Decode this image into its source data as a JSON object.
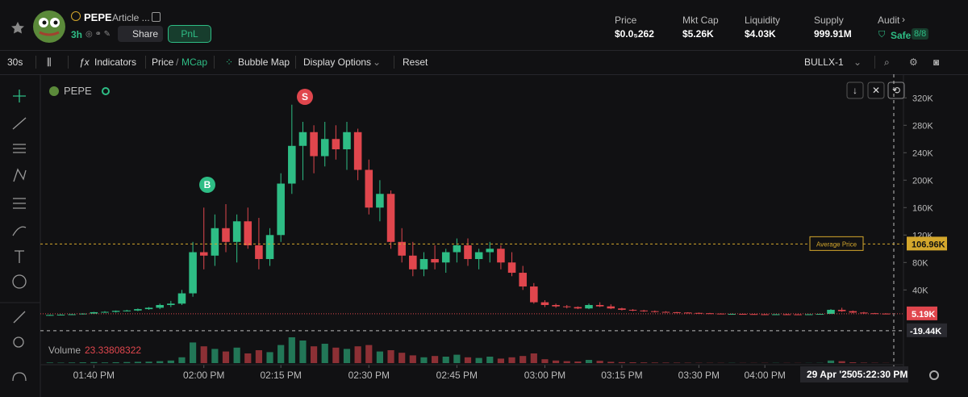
{
  "header": {
    "token": "PEPE",
    "subtitle": "Article ...",
    "age": "3h",
    "share": "Share",
    "pnl": "PnL",
    "stats": [
      {
        "label": "Price",
        "value": "$0.0₅262"
      },
      {
        "label": "Mkt Cap",
        "value": "$5.26K"
      },
      {
        "label": "Liquidity",
        "value": "$4.03K"
      },
      {
        "label": "Supply",
        "value": "999.91M"
      }
    ],
    "audit": {
      "label": "Audit",
      "status": "Safe",
      "score": "8/8"
    }
  },
  "toolbar": {
    "interval": "30s",
    "indicators": "Indicators",
    "price": "Price",
    "mcap": "MCap",
    "bubble": "Bubble Map",
    "display": "Display Options",
    "reset": "Reset",
    "bot": "BULLX-1"
  },
  "chart_data": {
    "type": "candlestick",
    "title": "PEPE",
    "grid": false,
    "categories": [
      null,
      null,
      null,
      null,
      "01:40 PM",
      null,
      null,
      null,
      null,
      null,
      null,
      null,
      null,
      null,
      "02:00 PM",
      null,
      null,
      null,
      null,
      null,
      null,
      "02:15 PM",
      null,
      null,
      null,
      null,
      null,
      null,
      null,
      "02:30 PM",
      null,
      null,
      null,
      null,
      null,
      null,
      null,
      "02:45 PM",
      null,
      null,
      null,
      null,
      null,
      null,
      null,
      "03:00 PM",
      null,
      null,
      null,
      null,
      null,
      null,
      "03:15 PM",
      null,
      null,
      null,
      null,
      null,
      null,
      "03:30 PM",
      null,
      null,
      null,
      null,
      null,
      "04:00 PM",
      null,
      null,
      null,
      null,
      null,
      null,
      null,
      null,
      null,
      null,
      null
    ],
    "open": [
      3,
      3.5,
      4,
      4.5,
      5.5,
      7.5,
      8,
      9.5,
      10,
      12,
      14,
      18,
      20,
      35,
      95,
      90,
      130,
      110,
      140,
      105,
      85,
      120,
      195,
      250,
      270,
      235,
      260,
      245,
      270,
      215,
      160,
      180,
      110,
      90,
      70,
      85,
      80,
      95,
      105,
      85,
      95,
      100,
      80,
      65,
      45,
      22,
      18,
      16,
      15,
      13,
      18,
      16,
      13,
      11,
      10,
      9,
      8,
      7.5,
      7,
      6.5,
      6,
      5.5,
      5,
      5,
      4.8,
      4.5,
      4.3,
      4.5,
      4.4,
      4.2,
      4.5,
      5,
      11,
      9,
      7,
      6,
      5.5
    ],
    "high": [
      4,
      4.5,
      5,
      6,
      8,
      9,
      10,
      11,
      13,
      15,
      20,
      24,
      40,
      110,
      160,
      150,
      165,
      150,
      160,
      145,
      130,
      210,
      310,
      285,
      280,
      285,
      280,
      285,
      275,
      230,
      200,
      185,
      130,
      110,
      95,
      105,
      100,
      115,
      115,
      100,
      110,
      105,
      95,
      75,
      50,
      25,
      20,
      18,
      16,
      20,
      22,
      19,
      14,
      12,
      11,
      10,
      9,
      8,
      7.5,
      7,
      6.5,
      6,
      5.5,
      5.5,
      5,
      5,
      4.8,
      5,
      4.8,
      4.6,
      5.2,
      12,
      14,
      10,
      8,
      6.5,
      6
    ],
    "low": [
      2.5,
      3,
      3.5,
      4,
      5,
      6.5,
      7,
      8.5,
      9,
      11,
      12,
      15,
      18,
      30,
      70,
      75,
      95,
      80,
      100,
      70,
      75,
      110,
      180,
      200,
      210,
      220,
      230,
      215,
      200,
      150,
      140,
      100,
      80,
      60,
      60,
      70,
      65,
      80,
      75,
      70,
      80,
      70,
      60,
      40,
      20,
      15,
      14,
      13,
      12,
      12,
      15,
      12,
      10,
      9,
      8,
      7,
      7,
      6,
      6,
      5.5,
      5,
      5,
      4.5,
      4.5,
      4.2,
      4,
      4,
      4.2,
      4,
      4,
      4.3,
      5,
      8,
      6,
      5,
      5,
      5
    ],
    "close": [
      3.5,
      4,
      4.5,
      5.5,
      7.5,
      8,
      9.5,
      10,
      12,
      14,
      18,
      20,
      35,
      95,
      90,
      130,
      110,
      140,
      105,
      85,
      120,
      195,
      250,
      270,
      235,
      260,
      245,
      270,
      215,
      160,
      180,
      110,
      90,
      70,
      85,
      80,
      95,
      105,
      85,
      95,
      100,
      80,
      65,
      45,
      22,
      18,
      16,
      15,
      13,
      18,
      16,
      13,
      11,
      10,
      9,
      8,
      7.5,
      7,
      6.5,
      6,
      5.5,
      5,
      5,
      4.8,
      4.5,
      4.3,
      4.5,
      4.4,
      4.2,
      4.5,
      5,
      11,
      9,
      7,
      6,
      5.5,
      5.19
    ],
    "volume_label": "Volume",
    "volume": [
      80,
      60,
      90,
      120,
      150,
      100,
      130,
      160,
      200,
      220,
      300,
      400,
      900,
      3200,
      2600,
      2200,
      1800,
      2400,
      1500,
      2000,
      1700,
      2800,
      4000,
      3500,
      2600,
      3000,
      2400,
      2200,
      2600,
      2800,
      1800,
      2000,
      1600,
      1200,
      900,
      1100,
      1000,
      1300,
      900,
      800,
      1000,
      700,
      900,
      1100,
      1500,
      600,
      400,
      300,
      250,
      500,
      350,
      200,
      150,
      120,
      100,
      80,
      70,
      60,
      50,
      40,
      35,
      30,
      30,
      25,
      25,
      30,
      28,
      25,
      22,
      20,
      30,
      400,
      300,
      120,
      60,
      40,
      23.33808322
    ],
    "up_color": "#2ebd85",
    "down_color": "#e0464d",
    "ylim": [
      -22,
      345
    ],
    "yticks": [
      {
        "value": 40,
        "label": "40K"
      },
      {
        "value": 80,
        "label": "80K"
      },
      {
        "value": 120,
        "label": "120K"
      },
      {
        "value": 160,
        "label": "160K"
      },
      {
        "value": 200,
        "label": "200K"
      },
      {
        "value": 240,
        "label": "240K"
      },
      {
        "value": 280,
        "label": "280K"
      },
      {
        "value": 320,
        "label": "320K"
      }
    ],
    "average_price": {
      "label": "Average Price",
      "value": 106.96,
      "value_label": "106.96K",
      "color": "#d4a72c"
    },
    "last_price": {
      "value": 5.19,
      "value_label": "5.19K",
      "color": "#e0464d"
    },
    "crosshair": {
      "value": -19.44,
      "value_label": "-19.44K",
      "date": "29 Apr '25",
      "time": "05:22:30 PM"
    },
    "markers": {
      "buy": "B",
      "sell": "S"
    }
  }
}
